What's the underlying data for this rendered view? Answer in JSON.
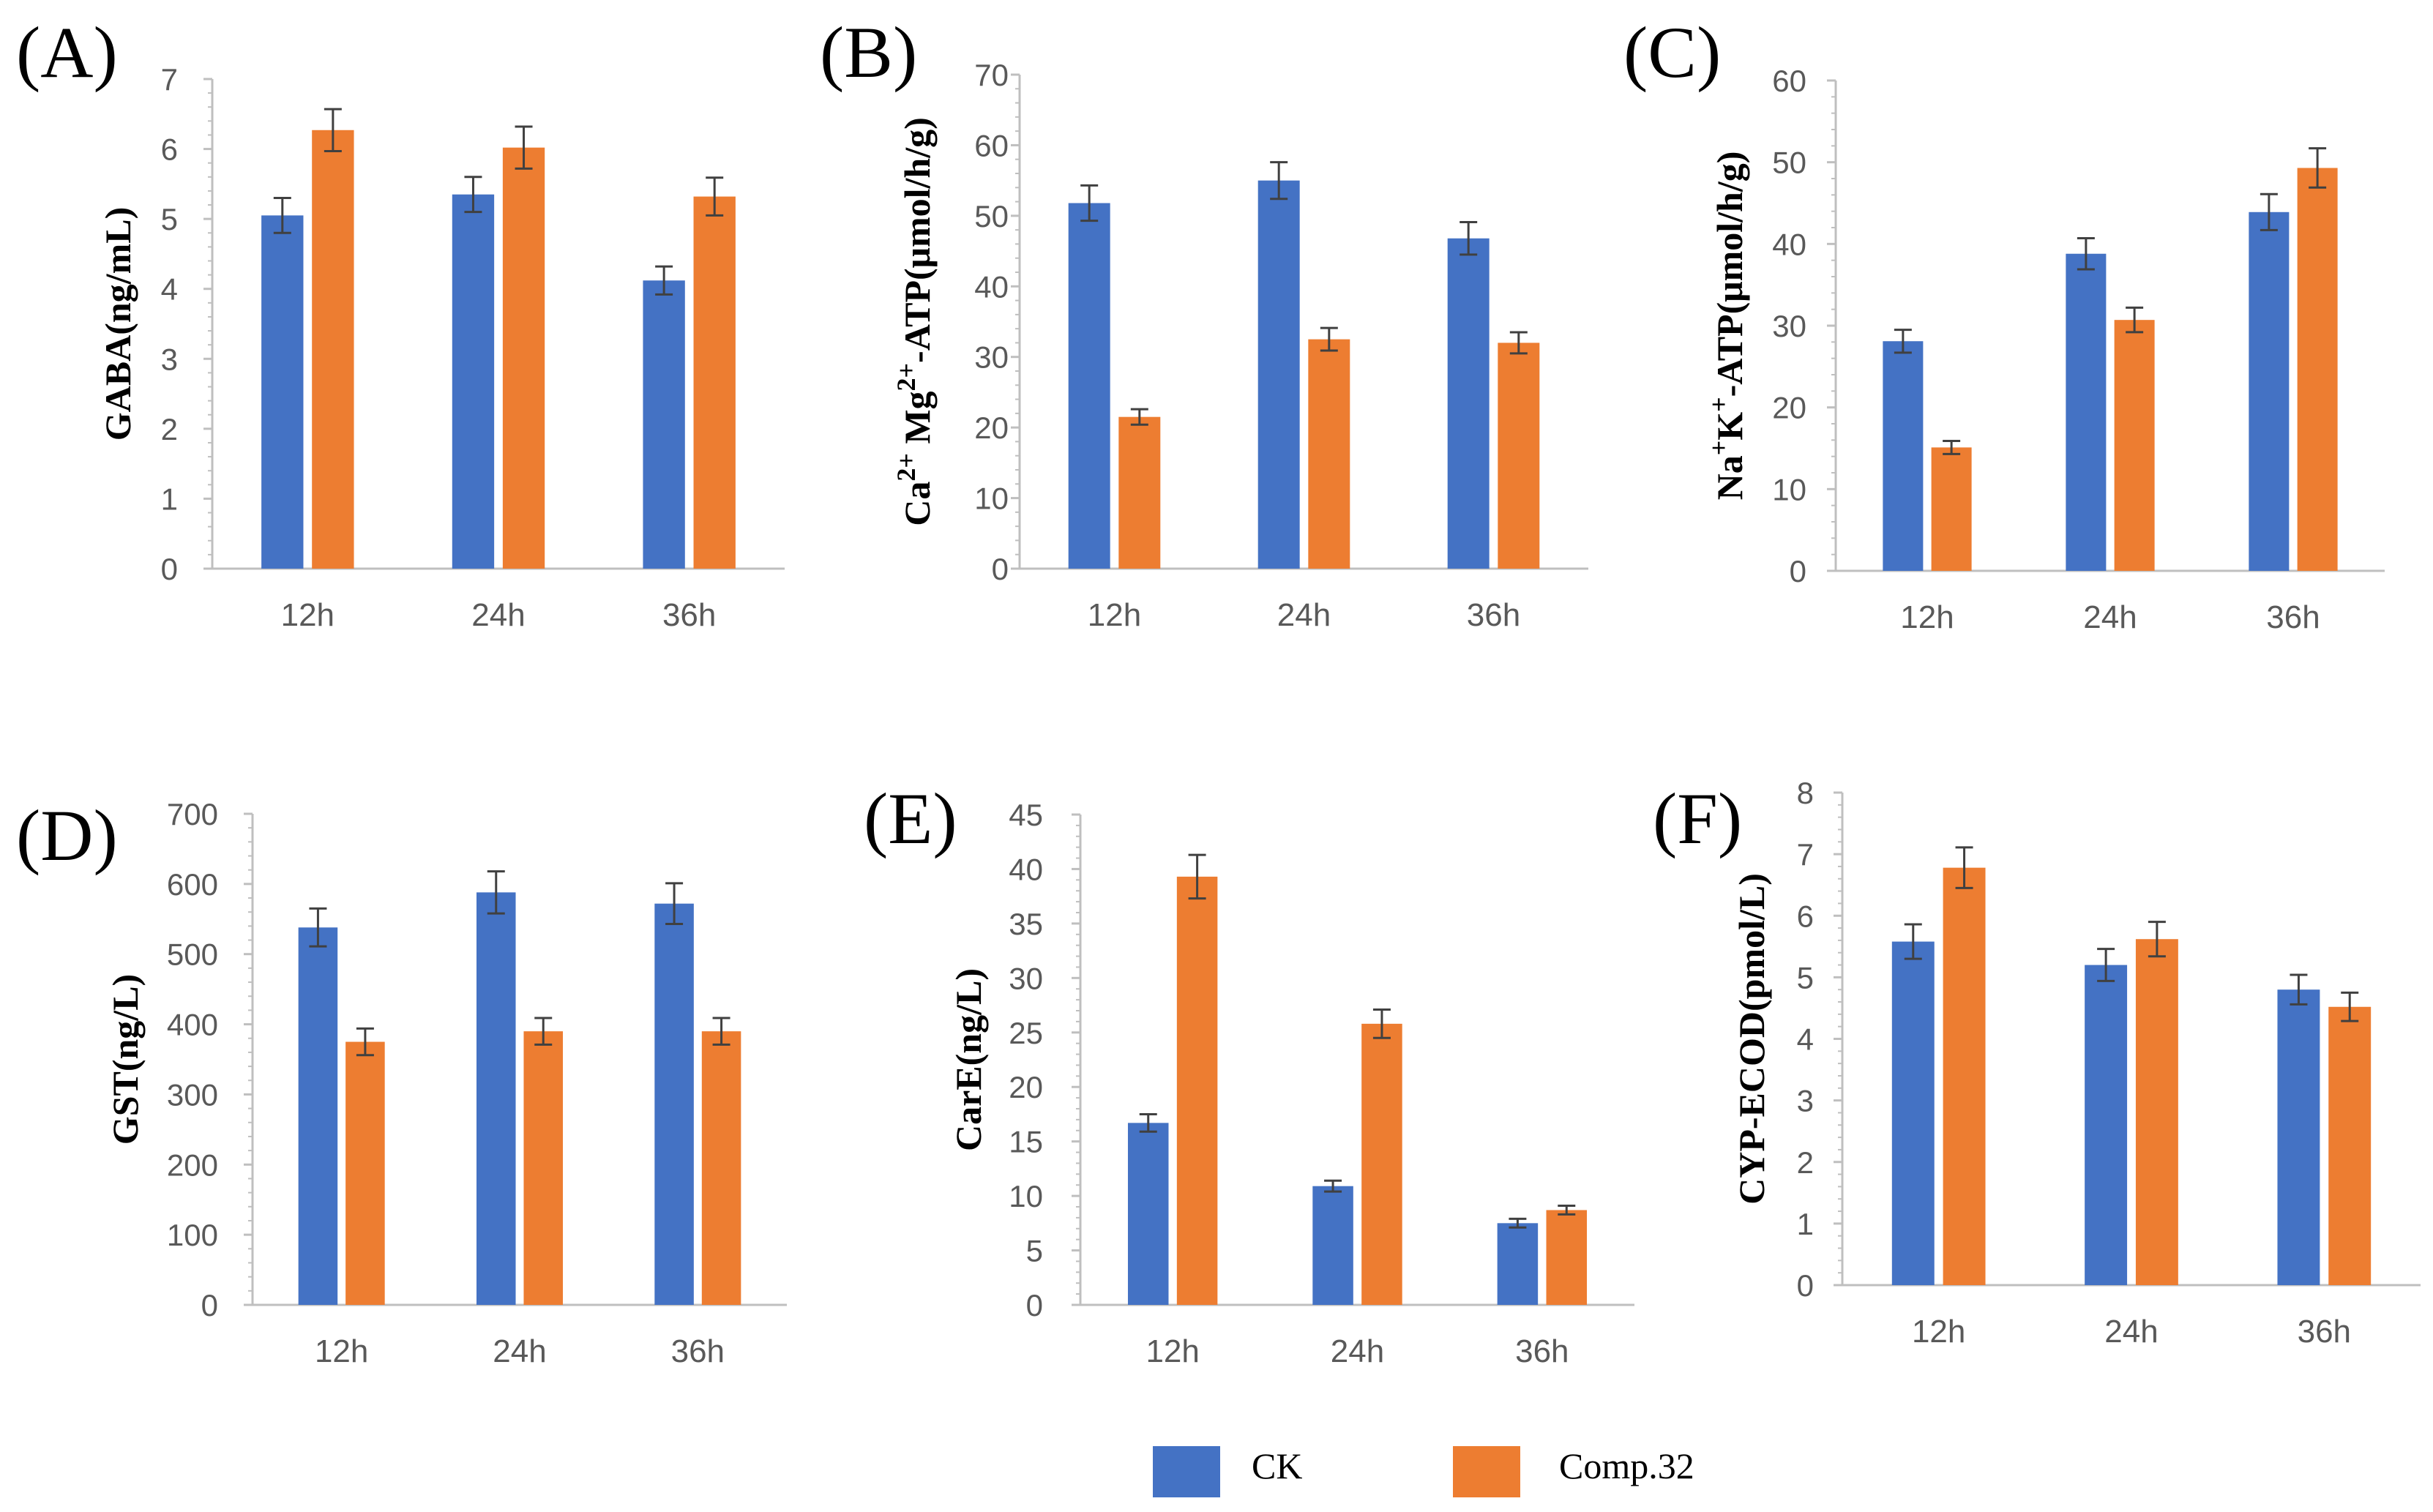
{
  "colors": {
    "ck": "#4472C4",
    "comp": "#ED7D31",
    "axis": "#BFBFBF",
    "error": "#404040"
  },
  "legend": {
    "ck": "CK",
    "comp": "Comp.32"
  },
  "chart_data": [
    {
      "type": "bar",
      "panel": "(A)",
      "ylabel": "GABA(ng/mL)",
      "ylim": [
        0,
        7
      ],
      "yticks": [
        0,
        1,
        2,
        3,
        4,
        5,
        6,
        7
      ],
      "categories": [
        "12h",
        "24h",
        "36h"
      ],
      "series": [
        {
          "name": "CK",
          "values": [
            5.05,
            5.35,
            4.12
          ],
          "errors": [
            0.25,
            0.25,
            0.2
          ]
        },
        {
          "name": "Comp.32",
          "values": [
            6.27,
            6.02,
            5.32
          ],
          "errors": [
            0.3,
            0.3,
            0.27
          ]
        }
      ]
    },
    {
      "type": "bar",
      "panel": "(B)",
      "ylabel": "Ca2+ Mg2+-ATP(μmol/h/g)",
      "ylim": [
        0,
        70
      ],
      "yticks": [
        0,
        10,
        20,
        30,
        40,
        50,
        60,
        70
      ],
      "categories": [
        "12h",
        "24h",
        "36h"
      ],
      "series": [
        {
          "name": "CK",
          "values": [
            51.8,
            55.0,
            46.8
          ],
          "errors": [
            2.5,
            2.6,
            2.3
          ]
        },
        {
          "name": "Comp.32",
          "values": [
            21.5,
            32.5,
            32.0
          ],
          "errors": [
            1.1,
            1.6,
            1.5
          ]
        }
      ]
    },
    {
      "type": "bar",
      "panel": "(C)",
      "ylabel": "Na+K+-ATP(μmol/h/g)",
      "ylim": [
        0,
        60
      ],
      "yticks": [
        0,
        10,
        20,
        30,
        40,
        50,
        60
      ],
      "categories": [
        "12h",
        "24h",
        "36h"
      ],
      "series": [
        {
          "name": "CK",
          "values": [
            28.1,
            38.8,
            43.9
          ],
          "errors": [
            1.4,
            1.9,
            2.2
          ]
        },
        {
          "name": "Comp.32",
          "values": [
            15.1,
            30.7,
            49.3
          ],
          "errors": [
            0.8,
            1.5,
            2.4
          ]
        }
      ]
    },
    {
      "type": "bar",
      "panel": "(D)",
      "ylabel": "GST(ng/L)",
      "ylim": [
        0,
        700
      ],
      "yticks": [
        0,
        100,
        200,
        300,
        400,
        500,
        600,
        700
      ],
      "categories": [
        "12h",
        "24h",
        "36h"
      ],
      "series": [
        {
          "name": "CK",
          "values": [
            538,
            588,
            572
          ],
          "errors": [
            27,
            30,
            29
          ]
        },
        {
          "name": "Comp.32",
          "values": [
            375,
            390,
            390
          ],
          "errors": [
            19,
            19,
            19
          ]
        }
      ]
    },
    {
      "type": "bar",
      "panel": "(E)",
      "ylabel": "CarE(ng/L)",
      "ylim": [
        0,
        45
      ],
      "yticks": [
        0,
        5,
        10,
        15,
        20,
        25,
        30,
        35,
        40,
        45
      ],
      "categories": [
        "12h",
        "24h",
        "36h"
      ],
      "series": [
        {
          "name": "CK",
          "values": [
            16.7,
            10.9,
            7.5
          ],
          "errors": [
            0.8,
            0.5,
            0.4
          ]
        },
        {
          "name": "Comp.32",
          "values": [
            39.3,
            25.8,
            8.7
          ],
          "errors": [
            2.0,
            1.3,
            0.4
          ]
        }
      ]
    },
    {
      "type": "bar",
      "panel": "(F)",
      "ylabel": "CYP-ECOD(pmol/L)",
      "ylim": [
        0,
        8
      ],
      "yticks": [
        0,
        1,
        2,
        3,
        4,
        5,
        6,
        7,
        8
      ],
      "categories": [
        "12h",
        "24h",
        "36h"
      ],
      "series": [
        {
          "name": "CK",
          "values": [
            5.58,
            5.2,
            4.8
          ],
          "errors": [
            0.28,
            0.26,
            0.24
          ]
        },
        {
          "name": "Comp.32",
          "values": [
            6.78,
            5.62,
            4.52
          ],
          "errors": [
            0.33,
            0.28,
            0.23
          ]
        }
      ]
    }
  ]
}
